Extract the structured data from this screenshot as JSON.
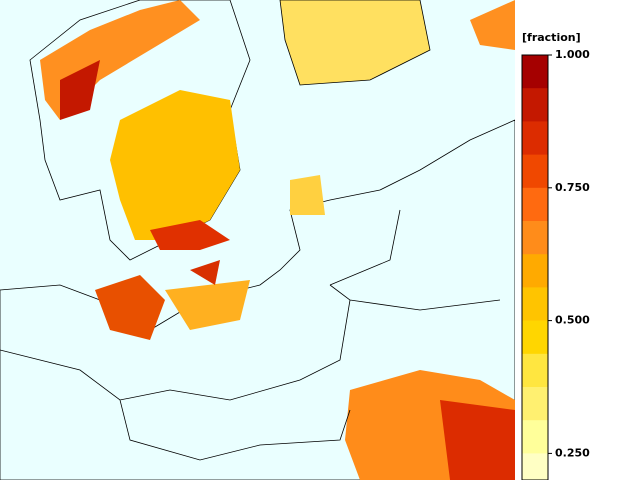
{
  "colorbar": {
    "label": "[fraction]",
    "colors": [
      "#a50000",
      "#c41800",
      "#dc2c00",
      "#f04800",
      "#ff6a10",
      "#ff8c1a",
      "#ffaa00",
      "#ffc400",
      "#ffd600",
      "#ffe640",
      "#fff070",
      "#ffff9a",
      "#ffffc4"
    ],
    "ticks": [
      {
        "value": 1,
        "label": "1.000"
      },
      {
        "value": 0.75,
        "label": "0.750"
      },
      {
        "value": 0.5,
        "label": "0.500"
      },
      {
        "value": 0.25,
        "label": "0.250"
      }
    ]
  }
}
